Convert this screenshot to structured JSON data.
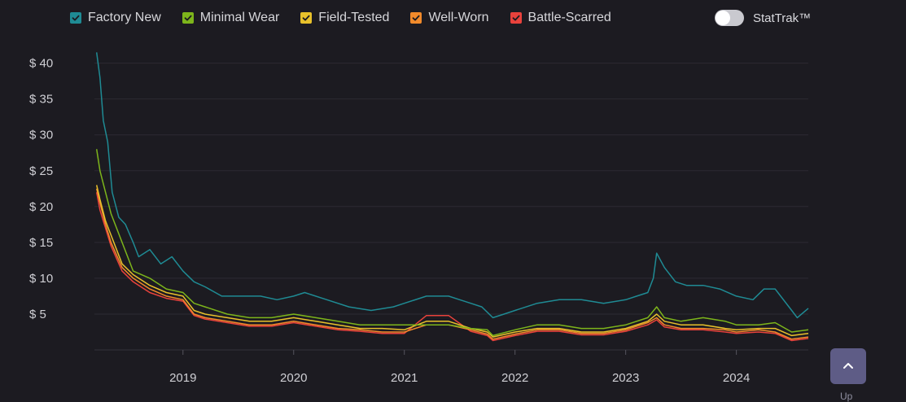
{
  "legend": {
    "items": [
      {
        "label": "Factory New",
        "color": "#1f8b94",
        "checked": true
      },
      {
        "label": "Minimal Wear",
        "color": "#7db51b",
        "checked": true
      },
      {
        "label": "Field-Tested",
        "color": "#e8c12b",
        "checked": true
      },
      {
        "label": "Well-Worn",
        "color": "#f18a2b",
        "checked": true
      },
      {
        "label": "Battle-Scarred",
        "color": "#e9423c",
        "checked": true
      }
    ]
  },
  "stattrak": {
    "label": "StatTrak™",
    "enabled": false
  },
  "scroll_top": {
    "icon": "chevron-up-icon",
    "label": "Up"
  },
  "chart_data": {
    "type": "line",
    "title": "",
    "xlabel": "",
    "ylabel": "",
    "x_tick_labels": [
      "2019",
      "2020",
      "2021",
      "2022",
      "2023",
      "2024"
    ],
    "y_tick_labels": [
      "$ 5",
      "$ 10",
      "$ 15",
      "$ 20",
      "$ 25",
      "$ 30",
      "$ 35",
      "$ 40"
    ],
    "y_ticks": [
      5,
      10,
      15,
      20,
      25,
      30,
      35,
      40
    ],
    "ylim": [
      0,
      42
    ],
    "xlim": [
      2018.2,
      2024.65
    ],
    "grid": true,
    "legend_position": "top",
    "series": [
      {
        "name": "Factory New",
        "color": "#1f8b94",
        "x": [
          2018.22,
          2018.25,
          2018.28,
          2018.32,
          2018.36,
          2018.42,
          2018.48,
          2018.55,
          2018.6,
          2018.7,
          2018.8,
          2018.9,
          2019.0,
          2019.1,
          2019.2,
          2019.35,
          2019.5,
          2019.7,
          2019.85,
          2020.0,
          2020.1,
          2020.3,
          2020.5,
          2020.7,
          2020.9,
          2021.0,
          2021.2,
          2021.4,
          2021.5,
          2021.6,
          2021.7,
          2021.8,
          2021.9,
          2022.0,
          2022.2,
          2022.4,
          2022.6,
          2022.8,
          2023.0,
          2023.1,
          2023.2,
          2023.25,
          2023.28,
          2023.35,
          2023.45,
          2023.55,
          2023.7,
          2023.85,
          2024.0,
          2024.15,
          2024.25,
          2024.35,
          2024.5,
          2024.55,
          2024.65
        ],
        "y": [
          41.5,
          38,
          32,
          29,
          22,
          18.5,
          17.5,
          15,
          13,
          14,
          12,
          13,
          11,
          9.5,
          8.8,
          7.5,
          7.5,
          7.5,
          7,
          7.5,
          8,
          7,
          6,
          5.5,
          6,
          6.5,
          7.5,
          7.5,
          7,
          6.5,
          6,
          4.5,
          5,
          5.5,
          6.5,
          7,
          7,
          6.5,
          7,
          7.5,
          8,
          10,
          13.5,
          11.5,
          9.5,
          9,
          9,
          8.5,
          7.5,
          7,
          8.5,
          8.5,
          5.5,
          4.5,
          5.8
        ]
      },
      {
        "name": "Minimal Wear",
        "color": "#7db51b",
        "x": [
          2018.22,
          2018.25,
          2018.3,
          2018.35,
          2018.45,
          2018.55,
          2018.7,
          2018.85,
          2019.0,
          2019.1,
          2019.2,
          2019.4,
          2019.6,
          2019.8,
          2020.0,
          2020.2,
          2020.4,
          2020.6,
          2020.8,
          2021.0,
          2021.2,
          2021.4,
          2021.6,
          2021.75,
          2021.8,
          2022.0,
          2022.2,
          2022.4,
          2022.6,
          2022.8,
          2023.0,
          2023.2,
          2023.28,
          2023.35,
          2023.5,
          2023.7,
          2023.9,
          2024.0,
          2024.2,
          2024.35,
          2024.5,
          2024.65
        ],
        "y": [
          28,
          25,
          22,
          19,
          15,
          11,
          10,
          8.5,
          8,
          6.5,
          6,
          5,
          4.5,
          4.5,
          5,
          4.5,
          4,
          3.5,
          3.5,
          3.5,
          3.5,
          3.5,
          3,
          2.8,
          2,
          2.8,
          3.5,
          3.5,
          3,
          3,
          3.5,
          4.5,
          6,
          4.5,
          4,
          4.5,
          4,
          3.5,
          3.5,
          3.8,
          2.5,
          2.8
        ]
      },
      {
        "name": "Field-Tested",
        "color": "#e8c12b",
        "x": [
          2018.22,
          2018.25,
          2018.3,
          2018.35,
          2018.45,
          2018.55,
          2018.7,
          2018.85,
          2019.0,
          2019.1,
          2019.2,
          2019.4,
          2019.6,
          2019.8,
          2020.0,
          2020.2,
          2020.4,
          2020.6,
          2020.8,
          2021.0,
          2021.2,
          2021.4,
          2021.6,
          2021.75,
          2021.8,
          2022.0,
          2022.2,
          2022.4,
          2022.6,
          2022.8,
          2023.0,
          2023.2,
          2023.28,
          2023.35,
          2023.5,
          2023.7,
          2023.9,
          2024.0,
          2024.2,
          2024.35,
          2024.5,
          2024.65
        ],
        "y": [
          23,
          21,
          18,
          16,
          12,
          10.5,
          9,
          8,
          7.5,
          5.5,
          5,
          4.5,
          4,
          4,
          4.5,
          4,
          3.5,
          3,
          3,
          2.8,
          4,
          4,
          3,
          2.5,
          1.8,
          2.5,
          3,
          3,
          2.5,
          2.5,
          3,
          4,
          5,
          4,
          3.5,
          3.5,
          3,
          2.8,
          3,
          3,
          2,
          2.3
        ]
      },
      {
        "name": "Well-Worn",
        "color": "#f18a2b",
        "x": [
          2018.22,
          2018.25,
          2018.3,
          2018.35,
          2018.45,
          2018.55,
          2018.7,
          2018.85,
          2019.0,
          2019.1,
          2019.2,
          2019.4,
          2019.6,
          2019.8,
          2020.0,
          2020.2,
          2020.4,
          2020.6,
          2020.8,
          2021.0,
          2021.2,
          2021.4,
          2021.6,
          2021.75,
          2021.8,
          2022.0,
          2022.2,
          2022.4,
          2022.6,
          2022.8,
          2023.0,
          2023.2,
          2023.28,
          2023.35,
          2023.5,
          2023.7,
          2023.9,
          2024.0,
          2024.2,
          2024.35,
          2024.5,
          2024.65
        ],
        "y": [
          22.5,
          20.5,
          17.5,
          15,
          11.5,
          10,
          8.5,
          7.5,
          7,
          5,
          4.5,
          4,
          3.5,
          3.5,
          4,
          3.5,
          3,
          2.8,
          2.5,
          2.5,
          3.5,
          3.5,
          2.8,
          2.2,
          1.5,
          2.2,
          2.8,
          2.8,
          2.3,
          2.3,
          2.8,
          3.8,
          4.5,
          3.5,
          3,
          3,
          2.8,
          2.5,
          2.8,
          2.5,
          1.5,
          1.8
        ]
      },
      {
        "name": "Battle-Scarred",
        "color": "#e9423c",
        "x": [
          2018.22,
          2018.25,
          2018.3,
          2018.35,
          2018.45,
          2018.55,
          2018.7,
          2018.85,
          2019.0,
          2019.1,
          2019.2,
          2019.4,
          2019.6,
          2019.8,
          2020.0,
          2020.2,
          2020.4,
          2020.6,
          2020.8,
          2021.0,
          2021.2,
          2021.4,
          2021.6,
          2021.75,
          2021.8,
          2022.0,
          2022.2,
          2022.4,
          2022.6,
          2022.8,
          2023.0,
          2023.2,
          2023.28,
          2023.35,
          2023.5,
          2023.7,
          2023.9,
          2024.0,
          2024.2,
          2024.35,
          2024.5,
          2024.65
        ],
        "y": [
          22,
          19.5,
          17,
          14.5,
          11,
          9.5,
          8,
          7.2,
          6.8,
          4.8,
          4.3,
          3.8,
          3.3,
          3.3,
          3.8,
          3.3,
          2.8,
          2.6,
          2.3,
          2.3,
          4.8,
          4.8,
          2.6,
          2,
          1.3,
          2,
          2.6,
          2.6,
          2.1,
          2.1,
          2.6,
          3.5,
          4.2,
          3.2,
          2.8,
          2.8,
          2.5,
          2.3,
          2.5,
          2.3,
          1.3,
          1.6
        ]
      }
    ]
  }
}
